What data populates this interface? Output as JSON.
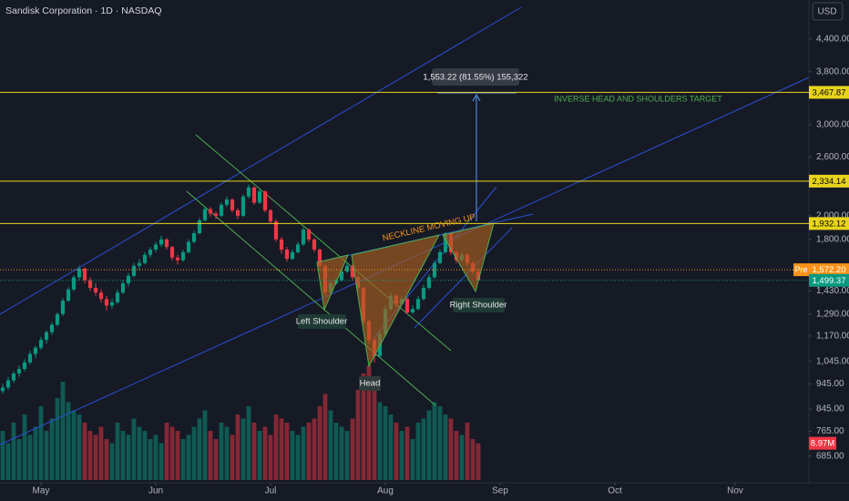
{
  "chart_data": {
    "type": "candlestick",
    "title": "Sandisk Corporation · 1D · NASDAQ",
    "currency": "USD",
    "log_scale": true,
    "grid": false,
    "up_color": "#089981",
    "down_color": "#f23645",
    "ylim": [
      608,
      5235
    ],
    "yticks": [
      {
        "value": 685,
        "label": "685.00"
      },
      {
        "value": 765,
        "label": "765.00"
      },
      {
        "value": 845,
        "label": "845.00"
      },
      {
        "value": 945,
        "label": "945.00"
      },
      {
        "value": 1045,
        "label": "1,045.00"
      },
      {
        "value": 1170,
        "label": "1,170.00"
      },
      {
        "value": 1290,
        "label": "1,290.00"
      },
      {
        "value": 1430,
        "label": "1,430.00"
      },
      {
        "value": 1800,
        "label": "1,800.00"
      },
      {
        "value": 2000,
        "label": "2,000.00"
      },
      {
        "value": 2600,
        "label": "2,600.00"
      },
      {
        "value": 3000,
        "label": "3,000.00"
      },
      {
        "value": 3800,
        "label": "3,800.00"
      },
      {
        "value": 4400,
        "label": "4,400.00"
      }
    ],
    "xlim": [
      -0.5,
      147.5
    ],
    "xticks": [
      {
        "value": 7,
        "label": "May"
      },
      {
        "value": 28,
        "label": "Jun"
      },
      {
        "value": 49,
        "label": "Jul"
      },
      {
        "value": 70,
        "label": "Aug"
      },
      {
        "value": 91,
        "label": "Sep"
      },
      {
        "value": 112,
        "label": "Oct"
      },
      {
        "value": 134,
        "label": "Nov"
      }
    ],
    "open": [
      915,
      930,
      960,
      990,
      1010,
      1040,
      1080,
      1110,
      1150,
      1190,
      1230,
      1290,
      1370,
      1440,
      1520,
      1580,
      1500,
      1450,
      1420,
      1380,
      1340,
      1360,
      1420,
      1480,
      1530,
      1600,
      1620,
      1680,
      1720,
      1760,
      1800,
      1740,
      1660,
      1640,
      1700,
      1780,
      1850,
      1960,
      2060,
      2020,
      2000,
      2100,
      2150,
      2050,
      2000,
      2180,
      2270,
      2120,
      2230,
      2050,
      1950,
      1800,
      1720,
      1650,
      1700,
      1760,
      1880,
      1800,
      1720,
      1600,
      1420,
      1480,
      1500,
      1560,
      1600,
      1520,
      1450,
      1250,
      1150,
      1070,
      1180,
      1320,
      1400,
      1350,
      1380,
      1300,
      1320,
      1380,
      1450,
      1520,
      1620,
      1700,
      1850,
      1700,
      1640,
      1680,
      1620,
      1560
    ],
    "high": [
      945,
      975,
      1000,
      1025,
      1055,
      1095,
      1120,
      1165,
      1200,
      1245,
      1300,
      1385,
      1455,
      1535,
      1600,
      1590,
      1520,
      1480,
      1440,
      1400,
      1380,
      1440,
      1500,
      1550,
      1620,
      1650,
      1700,
      1740,
      1780,
      1830,
      1810,
      1750,
      1680,
      1720,
      1800,
      1870,
      1980,
      2090,
      2080,
      2040,
      2120,
      2180,
      2160,
      2070,
      2200,
      2300,
      2280,
      2250,
      2240,
      2060,
      1970,
      1820,
      1740,
      1720,
      1780,
      1900,
      1890,
      1810,
      1730,
      1610,
      1500,
      1520,
      1580,
      1620,
      1610,
      1530,
      1460,
      1260,
      1160,
      1200,
      1340,
      1420,
      1410,
      1400,
      1390,
      1340,
      1400,
      1470,
      1540,
      1640,
      1720,
      1860,
      1860,
      1710,
      1700,
      1690,
      1630,
      1580
    ],
    "low": [
      905,
      920,
      950,
      975,
      1000,
      1030,
      1060,
      1100,
      1130,
      1175,
      1220,
      1280,
      1360,
      1430,
      1500,
      1480,
      1430,
      1400,
      1360,
      1310,
      1320,
      1350,
      1410,
      1460,
      1520,
      1570,
      1610,
      1660,
      1700,
      1740,
      1720,
      1640,
      1610,
      1630,
      1690,
      1770,
      1840,
      1950,
      1990,
      1970,
      1990,
      2080,
      2030,
      1970,
      1990,
      2160,
      2100,
      2110,
      2030,
      1930,
      1780,
      1690,
      1630,
      1640,
      1690,
      1750,
      1780,
      1700,
      1580,
      1400,
      1410,
      1470,
      1490,
      1550,
      1500,
      1430,
      1230,
      1130,
      1040,
      1060,
      1170,
      1310,
      1330,
      1340,
      1290,
      1290,
      1310,
      1370,
      1440,
      1510,
      1610,
      1690,
      1680,
      1620,
      1630,
      1600,
      1540,
      1490
    ],
    "close": [
      930,
      960,
      990,
      1010,
      1040,
      1080,
      1110,
      1150,
      1190,
      1230,
      1290,
      1370,
      1440,
      1520,
      1580,
      1500,
      1450,
      1420,
      1380,
      1340,
      1360,
      1420,
      1480,
      1530,
      1600,
      1620,
      1680,
      1720,
      1760,
      1800,
      1740,
      1660,
      1640,
      1700,
      1780,
      1850,
      1960,
      2060,
      2020,
      2000,
      2100,
      2150,
      2050,
      2000,
      2180,
      2270,
      2120,
      2230,
      2050,
      1950,
      1800,
      1720,
      1650,
      1700,
      1760,
      1880,
      1800,
      1720,
      1600,
      1420,
      1480,
      1500,
      1560,
      1600,
      1520,
      1450,
      1250,
      1150,
      1070,
      1180,
      1320,
      1400,
      1350,
      1380,
      1300,
      1320,
      1380,
      1450,
      1520,
      1620,
      1700,
      1850,
      1700,
      1640,
      1680,
      1620,
      1560,
      1499.37
    ],
    "volume": [
      12,
      9,
      14,
      10,
      16,
      11,
      13,
      18,
      12,
      15,
      20,
      24,
      19,
      17,
      16,
      14,
      12,
      11,
      13,
      10,
      9,
      14,
      12,
      11,
      15,
      13,
      12,
      10,
      11,
      9,
      14,
      13,
      12,
      10,
      11,
      13,
      15,
      17,
      12,
      10,
      14,
      13,
      11,
      16,
      15,
      18,
      14,
      12,
      13,
      11,
      16,
      15,
      14,
      12,
      11,
      13,
      14,
      15,
      18,
      21,
      17,
      14,
      13,
      12,
      15,
      22,
      26,
      28,
      24,
      19,
      18,
      16,
      14,
      12,
      13,
      10,
      14,
      15,
      17,
      19,
      18,
      16,
      15,
      12,
      11,
      14,
      10,
      8.97
    ],
    "volume_lim": [
      0,
      30
    ],
    "volume_label": "8.97M",
    "price_lines": [
      {
        "value": 3467.87,
        "label": "3,467.87",
        "color": "#e8d41c",
        "dashed": false
      },
      {
        "value": 2334.14,
        "label": "2,334.14",
        "color": "#e8d41c",
        "dashed": false
      },
      {
        "value": 1932.12,
        "label": "1,932.12",
        "color": "#e8d41c",
        "dashed": false
      },
      {
        "value": 1572.2,
        "label": "1,572.20",
        "color": "#f7931a",
        "dashed": true,
        "tag": "Pre"
      },
      {
        "value": 1499.37,
        "label": "1,499.37",
        "color": "#089981",
        "dashed": true
      }
    ],
    "annotations": {
      "measure": "1,553.22 (81.55%) 155,322",
      "target": "INVERSE HEAD AND SHOULDERS TARGET",
      "neckline": "NECKLINE MOVING UP",
      "left_shoulder": "Left Shoulder",
      "head": "Head",
      "right_shoulder": "Right Shoulder"
    }
  }
}
